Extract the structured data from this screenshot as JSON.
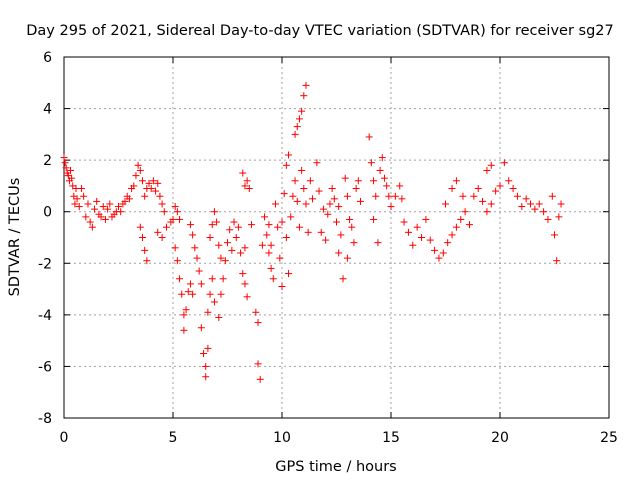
{
  "chart_data": {
    "type": "scatter",
    "title": "Day 295 of 2021, Sidereal Day-to-day VTEC variation (SDTVAR) for receiver sg27",
    "xlabel": "GPS time / hours",
    "ylabel": "SDTVAR / TECUs",
    "xlim": [
      0,
      25
    ],
    "ylim": [
      -8,
      6
    ],
    "xticks": [
      0,
      5,
      10,
      15,
      20,
      25
    ],
    "yticks": [
      -8,
      -6,
      -4,
      -2,
      0,
      2,
      4,
      6
    ],
    "xtick_labels": [
      "0",
      "5",
      "10",
      "15",
      "20",
      "25"
    ],
    "ytick_labels": [
      "-8",
      "-6",
      "-4",
      "-2",
      "0",
      "2",
      "4",
      "6"
    ],
    "grid": true,
    "marker": "+",
    "color": "#ff0000",
    "points": [
      [
        0.0,
        2.1
      ],
      [
        0.05,
        1.9
      ],
      [
        0.1,
        1.7
      ],
      [
        0.15,
        1.5
      ],
      [
        0.2,
        1.4
      ],
      [
        0.25,
        1.2
      ],
      [
        0.3,
        1.6
      ],
      [
        0.35,
        1.3
      ],
      [
        0.4,
        1.0
      ],
      [
        0.45,
        0.6
      ],
      [
        0.5,
        0.3
      ],
      [
        0.55,
        0.9
      ],
      [
        0.6,
        0.5
      ],
      [
        0.7,
        0.2
      ],
      [
        0.8,
        0.9
      ],
      [
        0.9,
        0.6
      ],
      [
        1.0,
        -0.2
      ],
      [
        1.1,
        0.3
      ],
      [
        1.2,
        -0.4
      ],
      [
        1.3,
        -0.6
      ],
      [
        1.4,
        0.1
      ],
      [
        1.5,
        0.4
      ],
      [
        1.6,
        -0.1
      ],
      [
        1.7,
        -0.2
      ],
      [
        1.8,
        0.2
      ],
      [
        1.9,
        -0.3
      ],
      [
        2.0,
        0.1
      ],
      [
        2.1,
        0.3
      ],
      [
        2.2,
        -0.2
      ],
      [
        2.3,
        -0.1
      ],
      [
        2.4,
        0.0
      ],
      [
        2.5,
        0.2
      ],
      [
        2.6,
        0.0
      ],
      [
        2.7,
        0.3
      ],
      [
        2.8,
        0.4
      ],
      [
        2.9,
        0.6
      ],
      [
        3.0,
        0.5
      ],
      [
        3.1,
        0.9
      ],
      [
        3.2,
        1.0
      ],
      [
        3.3,
        1.4
      ],
      [
        3.4,
        1.8
      ],
      [
        3.5,
        1.6
      ],
      [
        3.6,
        1.2
      ],
      [
        3.5,
        -0.6
      ],
      [
        3.6,
        -1.0
      ],
      [
        3.7,
        -1.5
      ],
      [
        3.8,
        -1.9
      ],
      [
        3.7,
        0.6
      ],
      [
        3.8,
        0.9
      ],
      [
        3.9,
        1.1
      ],
      [
        4.0,
        0.9
      ],
      [
        4.1,
        1.2
      ],
      [
        4.2,
        0.8
      ],
      [
        4.3,
        1.1
      ],
      [
        4.4,
        0.6
      ],
      [
        4.5,
        0.3
      ],
      [
        4.6,
        0.0
      ],
      [
        4.3,
        -0.8
      ],
      [
        4.5,
        -1.0
      ],
      [
        4.7,
        -0.6
      ],
      [
        4.9,
        -0.4
      ],
      [
        5.0,
        -0.3
      ],
      [
        5.1,
        0.2
      ],
      [
        5.2,
        0.0
      ],
      [
        5.3,
        -0.3
      ],
      [
        5.1,
        -1.4
      ],
      [
        5.2,
        -1.9
      ],
      [
        5.3,
        -2.6
      ],
      [
        5.4,
        -3.2
      ],
      [
        5.5,
        -4.0
      ],
      [
        5.5,
        -4.6
      ],
      [
        5.6,
        -3.8
      ],
      [
        5.7,
        -3.1
      ],
      [
        5.8,
        -2.8
      ],
      [
        5.9,
        -3.2
      ],
      [
        5.8,
        -0.5
      ],
      [
        5.9,
        -0.9
      ],
      [
        6.0,
        -1.4
      ],
      [
        6.1,
        -1.8
      ],
      [
        6.2,
        -2.3
      ],
      [
        6.3,
        -2.8
      ],
      [
        6.3,
        -4.5
      ],
      [
        6.4,
        -5.5
      ],
      [
        6.5,
        -6.0
      ],
      [
        6.5,
        -6.4
      ],
      [
        6.6,
        -5.3
      ],
      [
        6.6,
        -3.9
      ],
      [
        6.7,
        -3.2
      ],
      [
        6.8,
        -2.6
      ],
      [
        6.9,
        -3.5
      ],
      [
        6.7,
        -1.0
      ],
      [
        6.8,
        -0.5
      ],
      [
        6.9,
        0.0
      ],
      [
        7.0,
        -0.4
      ],
      [
        7.1,
        -1.3
      ],
      [
        7.2,
        -1.8
      ],
      [
        7.1,
        -4.1
      ],
      [
        7.2,
        -3.2
      ],
      [
        7.3,
        -2.6
      ],
      [
        7.4,
        -1.9
      ],
      [
        7.5,
        -1.2
      ],
      [
        7.6,
        -0.7
      ],
      [
        7.7,
        -1.5
      ],
      [
        7.8,
        -0.4
      ],
      [
        7.9,
        -1.0
      ],
      [
        8.0,
        -0.6
      ],
      [
        8.1,
        -1.6
      ],
      [
        8.2,
        -2.4
      ],
      [
        8.3,
        -2.8
      ],
      [
        8.4,
        -3.3
      ],
      [
        8.2,
        1.5
      ],
      [
        8.3,
        1.0
      ],
      [
        8.4,
        1.2
      ],
      [
        8.5,
        0.9
      ],
      [
        8.3,
        -1.4
      ],
      [
        8.6,
        -0.5
      ],
      [
        8.8,
        -3.9
      ],
      [
        8.9,
        -4.3
      ],
      [
        8.9,
        -5.9
      ],
      [
        9.0,
        -6.5
      ],
      [
        9.1,
        -1.3
      ],
      [
        9.2,
        -0.2
      ],
      [
        9.3,
        -0.9
      ],
      [
        9.4,
        -1.6
      ],
      [
        9.5,
        -2.2
      ],
      [
        9.4,
        -0.5
      ],
      [
        9.5,
        -1.3
      ],
      [
        9.6,
        -2.6
      ],
      [
        9.7,
        0.3
      ],
      [
        9.8,
        -0.6
      ],
      [
        9.9,
        -1.8
      ],
      [
        10.0,
        -2.9
      ],
      [
        10.0,
        -0.4
      ],
      [
        10.1,
        0.7
      ],
      [
        10.2,
        1.8
      ],
      [
        10.3,
        2.2
      ],
      [
        10.2,
        -1.0
      ],
      [
        10.3,
        -2.4
      ],
      [
        10.4,
        -0.2
      ],
      [
        10.5,
        0.6
      ],
      [
        10.6,
        3.0
      ],
      [
        10.7,
        3.3
      ],
      [
        10.8,
        3.6
      ],
      [
        10.9,
        3.9
      ],
      [
        11.0,
        4.5
      ],
      [
        11.1,
        4.9
      ],
      [
        10.6,
        1.2
      ],
      [
        10.7,
        0.4
      ],
      [
        10.8,
        -0.6
      ],
      [
        10.9,
        1.6
      ],
      [
        11.0,
        0.9
      ],
      [
        11.1,
        0.3
      ],
      [
        11.2,
        -0.8
      ],
      [
        11.3,
        1.2
      ],
      [
        11.4,
        0.5
      ],
      [
        11.6,
        1.9
      ],
      [
        11.7,
        0.8
      ],
      [
        11.8,
        -0.8
      ],
      [
        11.9,
        0.1
      ],
      [
        12.0,
        -1.1
      ],
      [
        12.1,
        -0.1
      ],
      [
        12.2,
        0.3
      ],
      [
        12.3,
        0.9
      ],
      [
        12.4,
        0.5
      ],
      [
        12.5,
        -0.4
      ],
      [
        12.6,
        0.2
      ],
      [
        12.7,
        -0.9
      ],
      [
        12.6,
        -1.6
      ],
      [
        12.8,
        -2.6
      ],
      [
        12.9,
        1.3
      ],
      [
        13.0,
        0.6
      ],
      [
        13.1,
        -0.3
      ],
      [
        13.0,
        -1.8
      ],
      [
        13.2,
        -0.6
      ],
      [
        13.3,
        -1.2
      ],
      [
        13.4,
        0.9
      ],
      [
        13.5,
        1.2
      ],
      [
        13.6,
        0.4
      ],
      [
        14.0,
        2.9
      ],
      [
        14.1,
        1.9
      ],
      [
        14.2,
        1.2
      ],
      [
        14.3,
        0.6
      ],
      [
        14.2,
        -0.3
      ],
      [
        14.4,
        -1.2
      ],
      [
        14.5,
        1.6
      ],
      [
        14.6,
        2.1
      ],
      [
        14.7,
        1.3
      ],
      [
        14.8,
        1.0
      ],
      [
        14.9,
        0.6
      ],
      [
        15.0,
        0.2
      ],
      [
        15.2,
        0.6
      ],
      [
        15.4,
        1.0
      ],
      [
        15.5,
        0.5
      ],
      [
        15.6,
        -0.4
      ],
      [
        15.8,
        -0.8
      ],
      [
        16.0,
        -1.3
      ],
      [
        16.2,
        -0.6
      ],
      [
        16.4,
        -1.0
      ],
      [
        16.6,
        -0.3
      ],
      [
        16.8,
        -1.1
      ],
      [
        17.0,
        -1.5
      ],
      [
        17.2,
        -1.8
      ],
      [
        17.4,
        -1.6
      ],
      [
        17.6,
        -1.2
      ],
      [
        17.8,
        -0.9
      ],
      [
        18.0,
        -0.6
      ],
      [
        18.2,
        -0.3
      ],
      [
        18.4,
        0.0
      ],
      [
        17.5,
        0.3
      ],
      [
        17.8,
        0.9
      ],
      [
        18.0,
        1.2
      ],
      [
        18.3,
        0.6
      ],
      [
        18.6,
        -0.5
      ],
      [
        18.8,
        0.6
      ],
      [
        19.0,
        0.9
      ],
      [
        19.2,
        0.4
      ],
      [
        19.4,
        0.0
      ],
      [
        19.6,
        0.3
      ],
      [
        19.8,
        0.8
      ],
      [
        20.0,
        1.0
      ],
      [
        19.4,
        1.6
      ],
      [
        19.6,
        1.8
      ],
      [
        20.2,
        1.9
      ],
      [
        20.4,
        1.2
      ],
      [
        20.6,
        0.9
      ],
      [
        20.8,
        0.6
      ],
      [
        21.0,
        0.2
      ],
      [
        21.2,
        0.5
      ],
      [
        21.4,
        0.3
      ],
      [
        21.6,
        0.1
      ],
      [
        21.8,
        0.3
      ],
      [
        22.0,
        0.0
      ],
      [
        22.2,
        -0.3
      ],
      [
        22.4,
        0.6
      ],
      [
        22.5,
        -0.9
      ],
      [
        22.6,
        -1.9
      ],
      [
        22.7,
        -0.2
      ],
      [
        22.8,
        0.3
      ]
    ]
  }
}
